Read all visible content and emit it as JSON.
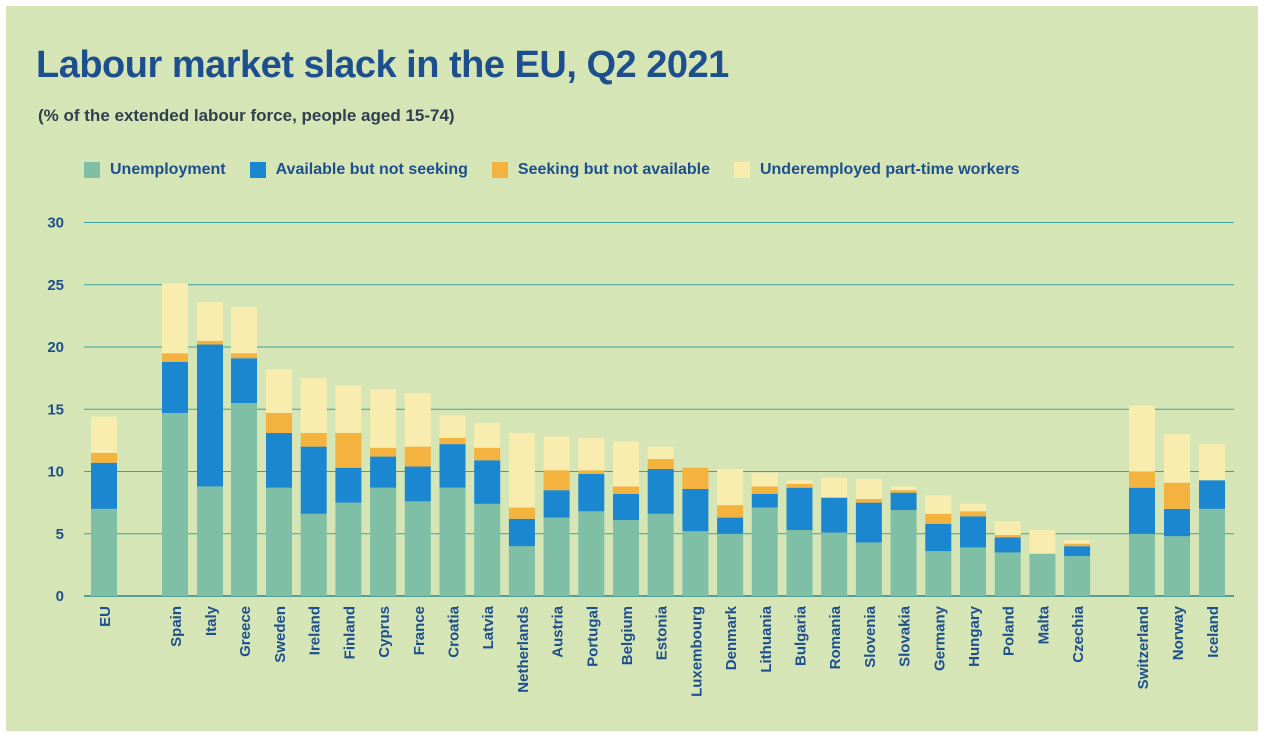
{
  "chart_data": {
    "type": "bar",
    "stacked": true,
    "title": "Labour market slack in the EU, Q2 2021",
    "subtitle": "(% of the extended labour force, people aged 15-74)",
    "ylim": [
      0,
      30
    ],
    "yticks": [
      0,
      5,
      10,
      15,
      20,
      25,
      30
    ],
    "grid": true,
    "legend_position": "top",
    "categories": [
      "EU",
      "Spain",
      "Italy",
      "Greece",
      "Sweden",
      "Ireland",
      "Finland",
      "Cyprus",
      "France",
      "Croatia",
      "Latvia",
      "Netherlands",
      "Austria",
      "Portugal",
      "Belgium",
      "Estonia",
      "Luxembourg",
      "Denmark",
      "Lithuania",
      "Bulgaria",
      "Romania",
      "Slovenia",
      "Slovakia",
      "Germany",
      "Hungary",
      "Poland",
      "Malta",
      "Czechia",
      "Switzerland",
      "Norway",
      "Iceland"
    ],
    "series": [
      {
        "name": "Unemployment",
        "color": "#7fbfa6",
        "values": [
          7.0,
          14.7,
          8.8,
          15.5,
          8.7,
          6.6,
          7.5,
          8.7,
          7.6,
          8.7,
          7.4,
          4.0,
          6.3,
          6.8,
          6.1,
          6.6,
          5.2,
          5.0,
          7.1,
          5.3,
          5.1,
          4.3,
          6.9,
          3.6,
          3.9,
          3.5,
          3.4,
          3.2,
          5.0,
          4.8,
          7.0
        ]
      },
      {
        "name": "Available but not seeking",
        "color": "#1b87d0",
        "values": [
          3.7,
          4.1,
          11.4,
          3.6,
          4.4,
          5.4,
          2.8,
          2.5,
          2.8,
          3.5,
          3.5,
          2.2,
          2.2,
          3.0,
          2.1,
          3.6,
          3.4,
          1.3,
          1.1,
          3.4,
          2.8,
          3.2,
          1.4,
          2.2,
          2.5,
          1.2,
          0.0,
          0.8,
          3.7,
          2.2,
          2.3
        ]
      },
      {
        "name": "Seeking but not available",
        "color": "#f4b23e",
        "values": [
          0.8,
          0.7,
          0.3,
          0.4,
          1.6,
          1.1,
          2.8,
          0.7,
          1.6,
          0.5,
          1.0,
          0.9,
          1.6,
          0.3,
          0.6,
          0.8,
          1.7,
          1.0,
          0.6,
          0.3,
          0.0,
          0.3,
          0.2,
          0.8,
          0.4,
          0.2,
          0.0,
          0.2,
          1.3,
          2.1,
          0.0
        ]
      },
      {
        "name": "Underemployed part-time workers",
        "color": "#f8edae",
        "values": [
          2.9,
          5.6,
          3.1,
          3.7,
          3.5,
          4.4,
          3.8,
          4.7,
          4.3,
          1.8,
          2.0,
          6.0,
          2.7,
          2.6,
          3.6,
          1.0,
          0.0,
          2.9,
          1.1,
          0.3,
          1.6,
          1.6,
          0.3,
          1.5,
          0.6,
          1.1,
          1.9,
          0.3,
          5.3,
          3.9,
          2.9
        ]
      }
    ]
  }
}
